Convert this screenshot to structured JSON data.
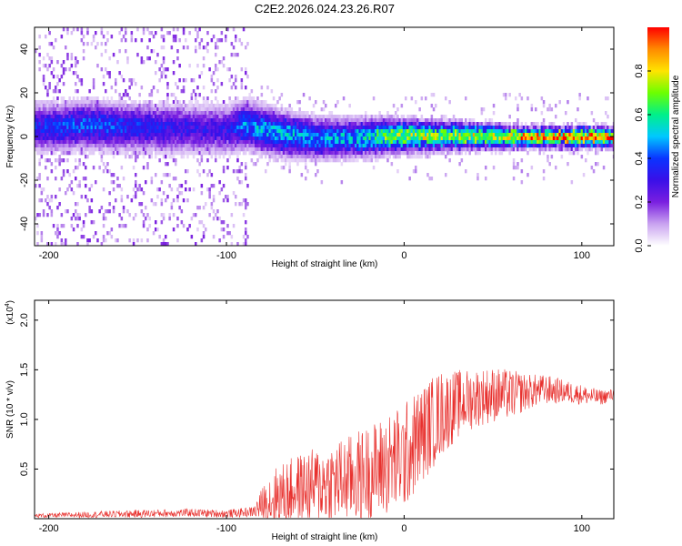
{
  "figure_title": "C2E2.2026.024.23.26.R07",
  "colors": {
    "snr_line": "#e8312e",
    "colormap_stops": [
      "#ffffff",
      "#c9a2f0",
      "#7a1fe0",
      "#3a0fe8",
      "#0a34ff",
      "#00c8ff",
      "#00f08a",
      "#6cff00",
      "#ffe400",
      "#ff8a00",
      "#ff0000"
    ]
  },
  "chart_data": [
    {
      "type": "heatmap",
      "title": "",
      "xlabel": "Height of straight line (km)",
      "ylabel": "Frequency (Hz)",
      "xlim": [
        -208,
        118
      ],
      "ylim": [
        -50,
        50
      ],
      "xticks": [
        -200,
        -100,
        0,
        100
      ],
      "xtick_labels": [
        "-200",
        "-100",
        "0",
        "100"
      ],
      "yticks": [
        -40,
        -20,
        0,
        20,
        40
      ],
      "ytick_labels": [
        "-40",
        "-20",
        "0",
        "20",
        "40"
      ],
      "grid": false,
      "colorbar": {
        "label": "Normalized spectral amplitude",
        "range": [
          0,
          1
        ],
        "ticks": [
          0,
          0.2,
          0.4,
          0.6,
          0.8
        ],
        "tick_labels": [
          "0.0",
          "0.2",
          "0.4",
          "0.6",
          "0.8"
        ]
      },
      "ridge": {
        "description_points_x": [
          -205,
          -180,
          -150,
          -120,
          -100,
          -90,
          -70,
          -50,
          -30,
          -10,
          0,
          20,
          40,
          60,
          80,
          100,
          118
        ],
        "center_freq_hz": [
          5,
          6,
          5,
          4,
          4,
          6,
          2,
          0,
          0,
          1,
          1,
          1,
          1,
          0.5,
          0.5,
          0.5,
          0.5
        ],
        "peak_amplitude": [
          0.35,
          0.4,
          0.35,
          0.3,
          0.3,
          0.45,
          0.5,
          0.45,
          0.5,
          0.65,
          0.7,
          0.7,
          0.72,
          0.8,
          0.9,
          0.95,
          0.9
        ]
      }
    },
    {
      "type": "line",
      "title": "",
      "xlabel": "Height of straight line (km)",
      "ylabel": "SNR (10 * v/v)",
      "y_multiplier_label": "(x10",
      "y_multiplier_exp": "4",
      "y_multiplier_close": ")",
      "xlim": [
        -208,
        118
      ],
      "ylim": [
        0,
        2.2
      ],
      "xticks": [
        -200,
        -100,
        0,
        100
      ],
      "xtick_labels": [
        "-200",
        "-100",
        "0",
        "100"
      ],
      "yticks": [
        0.5,
        1.0,
        1.5,
        2.0
      ],
      "ytick_labels": [
        "0.5",
        "1.0",
        "1.5",
        "2.0"
      ],
      "grid": false,
      "series": [
        {
          "x": [
            -208,
            -180,
            -150,
            -120,
            -100,
            -85,
            -75,
            -60,
            -45,
            -30,
            -15,
            0,
            10,
            20,
            30,
            40,
            50,
            60,
            70,
            80,
            90,
            100,
            110,
            118
          ],
          "y": [
            0.03,
            0.04,
            0.05,
            0.06,
            0.05,
            0.07,
            0.2,
            0.3,
            0.35,
            0.4,
            0.5,
            0.62,
            0.85,
            1.05,
            1.15,
            1.22,
            1.25,
            1.25,
            1.28,
            1.3,
            1.28,
            1.25,
            1.22,
            1.25
          ],
          "spread": [
            0.02,
            0.03,
            0.04,
            0.04,
            0.04,
            0.05,
            0.3,
            0.35,
            0.4,
            0.45,
            0.5,
            0.55,
            0.5,
            0.45,
            0.35,
            0.3,
            0.28,
            0.25,
            0.18,
            0.15,
            0.12,
            0.1,
            0.08,
            0.06
          ]
        }
      ]
    }
  ]
}
